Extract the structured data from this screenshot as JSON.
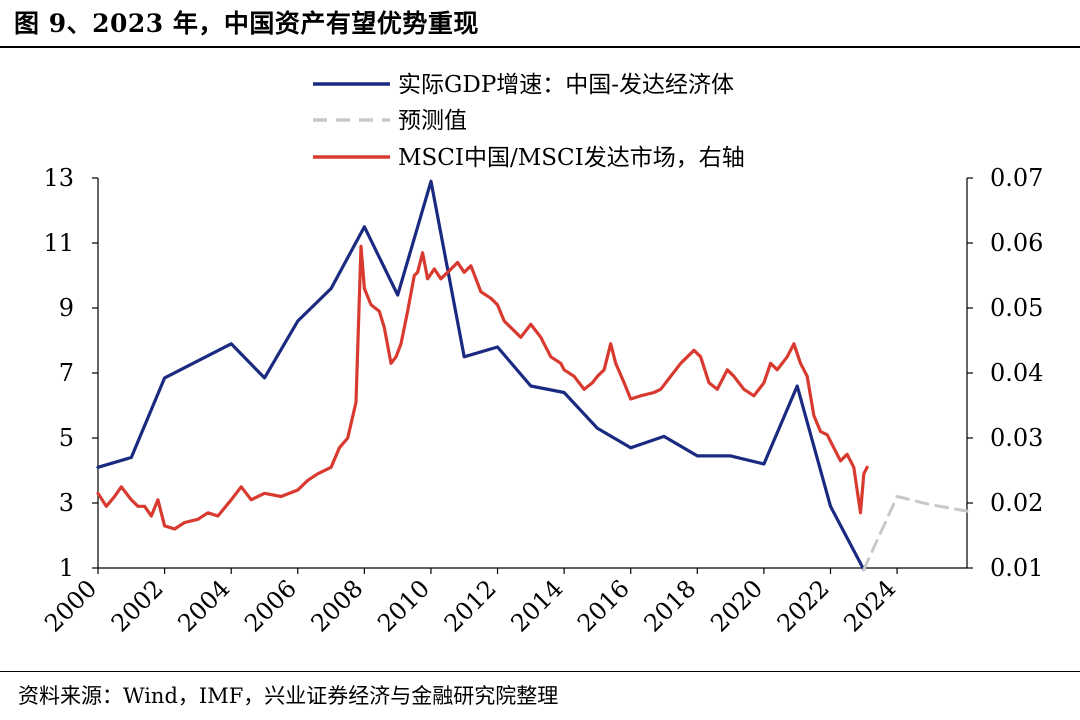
{
  "title": "图 9、2023 年，中国资产有望优势重现",
  "source": "资料来源：Wind，IMF，兴业证券经济与金融研究院整理",
  "chart_data": {
    "type": "line",
    "x_ticks": [
      "2000",
      "2002",
      "2004",
      "2006",
      "2008",
      "2010",
      "2012",
      "2014",
      "2016",
      "2018",
      "2020",
      "2022",
      "2024"
    ],
    "xlim": [
      2000,
      2026.1
    ],
    "y_left": {
      "ticks": [
        "1",
        "3",
        "5",
        "7",
        "9",
        "11",
        "13"
      ],
      "lim": [
        1,
        13
      ]
    },
    "y_right": {
      "ticks": [
        "0.01",
        "0.02",
        "0.03",
        "0.04",
        "0.05",
        "0.06",
        "0.07"
      ],
      "lim": [
        0.01,
        0.07
      ]
    },
    "grid": false,
    "legend_position": "top",
    "series": [
      {
        "name": "实际GDP增速：中国-发达经济体",
        "axis": "left",
        "color": "#1a2a80",
        "style": "solid",
        "points": [
          [
            2000,
            4.1
          ],
          [
            2001,
            4.4
          ],
          [
            2002,
            6.85
          ],
          [
            2004,
            7.9
          ],
          [
            2005,
            6.85
          ],
          [
            2006,
            8.6
          ],
          [
            2007,
            9.6
          ],
          [
            2008,
            11.5
          ],
          [
            2009,
            9.4
          ],
          [
            2010,
            12.9
          ],
          [
            2011,
            7.5
          ],
          [
            2012,
            7.8
          ],
          [
            2013,
            6.6
          ],
          [
            2014,
            6.4
          ],
          [
            2015,
            5.3
          ],
          [
            2016,
            4.7
          ],
          [
            2017,
            5.05
          ],
          [
            2018,
            4.45
          ],
          [
            2019,
            4.45
          ],
          [
            2020,
            4.2
          ],
          [
            2021,
            6.6
          ],
          [
            2022,
            2.9
          ],
          [
            2023,
            0.95
          ]
        ]
      },
      {
        "name": "预测值",
        "axis": "left",
        "color": "#c8c8c8",
        "style": "dashed",
        "points": [
          [
            2023,
            0.95
          ],
          [
            2024,
            3.2
          ],
          [
            2025,
            2.95
          ],
          [
            2026.1,
            2.75
          ]
        ]
      },
      {
        "name": "MSCI中国/MSCI发达市场，右轴",
        "axis": "right",
        "color": "#d83a2f",
        "style": "solid",
        "points": [
          [
            2000,
            0.0215
          ],
          [
            2000.25,
            0.0195
          ],
          [
            2000.5,
            0.021
          ],
          [
            2000.7,
            0.0225
          ],
          [
            2001,
            0.0205
          ],
          [
            2001.2,
            0.0195
          ],
          [
            2001.4,
            0.0195
          ],
          [
            2001.6,
            0.018
          ],
          [
            2001.8,
            0.0205
          ],
          [
            2002,
            0.0165
          ],
          [
            2002.3,
            0.016
          ],
          [
            2002.6,
            0.017
          ],
          [
            2003,
            0.0175
          ],
          [
            2003.3,
            0.0185
          ],
          [
            2003.6,
            0.018
          ],
          [
            2004,
            0.0205
          ],
          [
            2004.3,
            0.0225
          ],
          [
            2004.6,
            0.0205
          ],
          [
            2005,
            0.0215
          ],
          [
            2005.5,
            0.021
          ],
          [
            2006,
            0.022
          ],
          [
            2006.3,
            0.0235
          ],
          [
            2006.6,
            0.0245
          ],
          [
            2007,
            0.0255
          ],
          [
            2007.25,
            0.0285
          ],
          [
            2007.5,
            0.03
          ],
          [
            2007.75,
            0.0355
          ],
          [
            2007.9,
            0.0595
          ],
          [
            2008,
            0.053
          ],
          [
            2008.2,
            0.0505
          ],
          [
            2008.45,
            0.0495
          ],
          [
            2008.6,
            0.047
          ],
          [
            2008.8,
            0.0415
          ],
          [
            2008.95,
            0.0425
          ],
          [
            2009.1,
            0.0445
          ],
          [
            2009.3,
            0.0495
          ],
          [
            2009.5,
            0.055
          ],
          [
            2009.6,
            0.0555
          ],
          [
            2009.75,
            0.0585
          ],
          [
            2009.9,
            0.0545
          ],
          [
            2010.1,
            0.056
          ],
          [
            2010.3,
            0.0545
          ],
          [
            2010.5,
            0.0555
          ],
          [
            2010.8,
            0.057
          ],
          [
            2011,
            0.0555
          ],
          [
            2011.2,
            0.0565
          ],
          [
            2011.5,
            0.0525
          ],
          [
            2011.8,
            0.0515
          ],
          [
            2012,
            0.0505
          ],
          [
            2012.2,
            0.048
          ],
          [
            2012.5,
            0.0465
          ],
          [
            2012.7,
            0.0455
          ],
          [
            2013,
            0.0475
          ],
          [
            2013.3,
            0.0455
          ],
          [
            2013.6,
            0.0425
          ],
          [
            2013.9,
            0.0415
          ],
          [
            2014,
            0.0405
          ],
          [
            2014.3,
            0.0395
          ],
          [
            2014.6,
            0.0375
          ],
          [
            2014.85,
            0.0385
          ],
          [
            2015,
            0.0395
          ],
          [
            2015.2,
            0.0405
          ],
          [
            2015.4,
            0.0445
          ],
          [
            2015.55,
            0.0415
          ],
          [
            2015.8,
            0.0385
          ],
          [
            2016,
            0.036
          ],
          [
            2016.3,
            0.0365
          ],
          [
            2016.7,
            0.037
          ],
          [
            2016.9,
            0.0375
          ],
          [
            2017.2,
            0.0395
          ],
          [
            2017.5,
            0.0415
          ],
          [
            2017.9,
            0.0435
          ],
          [
            2018.1,
            0.0425
          ],
          [
            2018.35,
            0.0385
          ],
          [
            2018.6,
            0.0375
          ],
          [
            2018.9,
            0.0405
          ],
          [
            2019.1,
            0.0395
          ],
          [
            2019.4,
            0.0375
          ],
          [
            2019.7,
            0.0365
          ],
          [
            2020,
            0.0385
          ],
          [
            2020.2,
            0.0415
          ],
          [
            2020.4,
            0.0405
          ],
          [
            2020.7,
            0.0425
          ],
          [
            2020.9,
            0.0445
          ],
          [
            2021.1,
            0.0415
          ],
          [
            2021.3,
            0.0395
          ],
          [
            2021.5,
            0.0335
          ],
          [
            2021.7,
            0.031
          ],
          [
            2021.9,
            0.0305
          ],
          [
            2022.1,
            0.0285
          ],
          [
            2022.3,
            0.0265
          ],
          [
            2022.5,
            0.0275
          ],
          [
            2022.7,
            0.0255
          ],
          [
            2022.9,
            0.0185
          ],
          [
            2023,
            0.0245
          ],
          [
            2023.1,
            0.0255
          ]
        ]
      }
    ]
  }
}
